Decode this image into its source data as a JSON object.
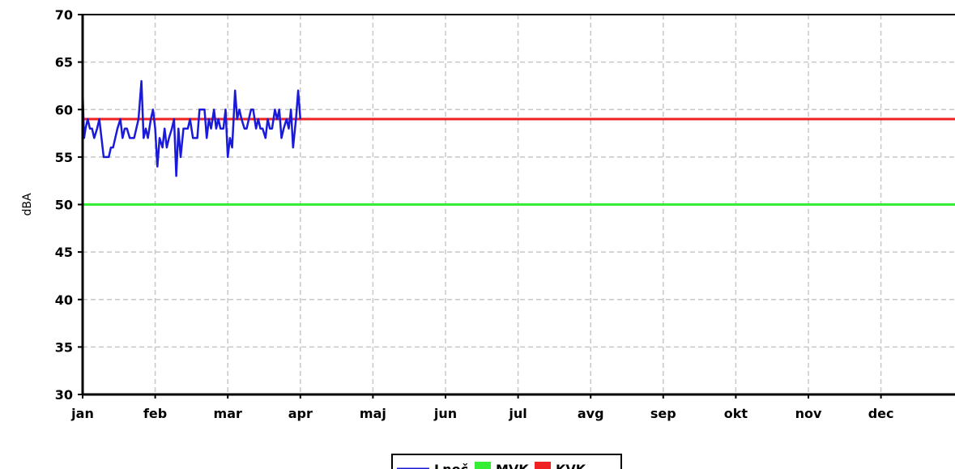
{
  "chart_data": {
    "type": "line",
    "ylabel": "dBA",
    "xlabel": "",
    "ylim": [
      30,
      70
    ],
    "yticks": [
      30,
      35,
      40,
      45,
      50,
      55,
      60,
      65,
      70
    ],
    "categories": [
      "jan",
      "feb",
      "mar",
      "apr",
      "maj",
      "jun",
      "jul",
      "avg",
      "sep",
      "okt",
      "nov",
      "dec"
    ],
    "grid": true,
    "legend": "bottom-center",
    "series": [
      {
        "name": "Lnoč",
        "color": "#1a1adb",
        "x_unit": "month",
        "x": [
          0.0,
          0.02,
          0.04,
          0.07,
          0.1,
          0.13,
          0.16,
          0.2,
          0.23,
          0.26,
          0.29,
          0.32,
          0.36,
          0.39,
          0.42,
          0.45,
          0.48,
          0.52,
          0.55,
          0.58,
          0.61,
          0.65,
          0.68,
          0.71,
          0.74,
          0.77,
          0.81,
          0.84,
          0.87,
          0.9,
          0.94,
          0.97,
          1.0,
          1.03,
          1.06,
          1.1,
          1.13,
          1.16,
          1.19,
          1.23,
          1.26,
          1.29,
          1.32,
          1.35,
          1.39,
          1.42,
          1.45,
          1.48,
          1.52,
          1.55,
          1.58,
          1.61,
          1.65,
          1.68,
          1.71,
          1.74,
          1.77,
          1.81,
          1.84,
          1.87,
          1.9,
          1.94,
          1.97,
          2.0,
          2.03,
          2.06,
          2.1,
          2.13,
          2.16,
          2.19,
          2.23,
          2.26,
          2.29,
          2.32,
          2.35,
          2.39,
          2.42,
          2.45,
          2.48,
          2.52,
          2.55,
          2.58,
          2.61,
          2.65,
          2.68,
          2.71,
          2.74,
          2.77,
          2.81,
          2.84,
          2.87,
          2.9,
          2.94,
          2.97,
          3.0
        ],
        "y": [
          62,
          57,
          58,
          59,
          58,
          58,
          57,
          58,
          59,
          57,
          55,
          55,
          55,
          56,
          56,
          57,
          58,
          59,
          57,
          58,
          58,
          57,
          57,
          57,
          58,
          59,
          63,
          57,
          58,
          57,
          59,
          60,
          58,
          54,
          57,
          56,
          58,
          56,
          57,
          58,
          59,
          53,
          58,
          55,
          58,
          58,
          58,
          59,
          57,
          57,
          57,
          60,
          60,
          60,
          57,
          59,
          58,
          60,
          58,
          59,
          58,
          58,
          60,
          55,
          57,
          56,
          62,
          59,
          60,
          59,
          58,
          58,
          59,
          60,
          60,
          58,
          59,
          58,
          58,
          57,
          59,
          58,
          58,
          60,
          59,
          60,
          57,
          58,
          59,
          58,
          60,
          56,
          59,
          62,
          59
        ]
      },
      {
        "name": "MVK",
        "color": "#33ee33",
        "value": 50
      },
      {
        "name": "KVK",
        "color": "#ee2222",
        "value": 59
      }
    ]
  }
}
